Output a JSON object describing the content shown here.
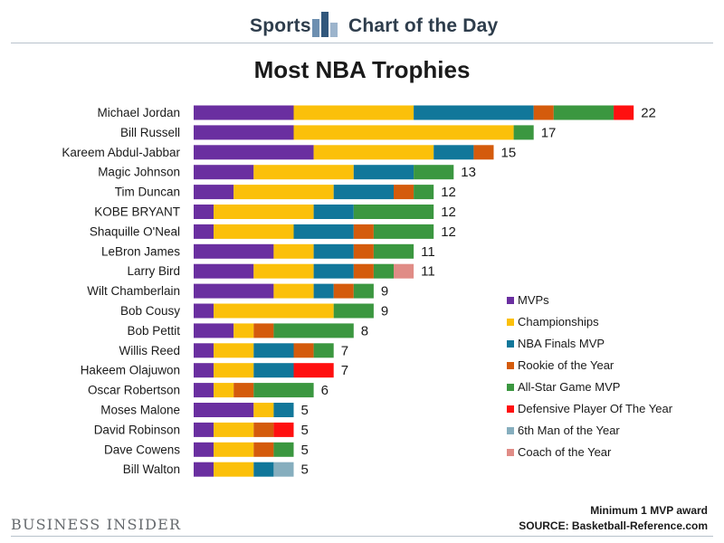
{
  "header": {
    "left": "Sports",
    "right": "Chart of the Day"
  },
  "chart_data": {
    "type": "bar",
    "orientation": "horizontal",
    "stacked": true,
    "title": "Most NBA Trophies",
    "xlabel": "",
    "ylabel": "",
    "categories": [
      "Michael Jordan",
      "Bill Russell",
      "Kareem Abdul-Jabbar",
      "Magic Johnson",
      "Tim Duncan",
      "KOBE BRYANT",
      "Shaquille O'Neal",
      "LeBron James",
      "Larry Bird",
      "Wilt Chamberlain",
      "Bob Cousy",
      "Bob Pettit",
      "Willis Reed",
      "Hakeem Olajuwon",
      "Oscar Robertson",
      "Moses Malone",
      "David Robinson",
      "Dave Cowens",
      "Bill Walton"
    ],
    "series": [
      {
        "name": "MVPs",
        "color": "#6a2fa0",
        "values": [
          5,
          5,
          6,
          3,
          2,
          1,
          1,
          4,
          3,
          4,
          1,
          2,
          1,
          1,
          1,
          3,
          1,
          1,
          1
        ]
      },
      {
        "name": "Championships",
        "color": "#fbc00a",
        "values": [
          6,
          11,
          6,
          5,
          5,
          5,
          4,
          2,
          3,
          2,
          6,
          1,
          2,
          2,
          1,
          1,
          2,
          2,
          2
        ]
      },
      {
        "name": "NBA Finals MVP",
        "color": "#11779a",
        "values": [
          6,
          0,
          2,
          3,
          3,
          2,
          3,
          2,
          2,
          1,
          0,
          0,
          2,
          2,
          0,
          1,
          0,
          0,
          1
        ]
      },
      {
        "name": "Rookie of the Year",
        "color": "#d45b0c",
        "values": [
          1,
          0,
          1,
          0,
          1,
          0,
          1,
          1,
          1,
          1,
          0,
          1,
          1,
          0,
          1,
          0,
          1,
          1,
          0
        ]
      },
      {
        "name": "All-Star Game MVP",
        "color": "#3b9740",
        "values": [
          3,
          1,
          0,
          2,
          1,
          4,
          3,
          2,
          1,
          1,
          2,
          4,
          1,
          0,
          3,
          0,
          0,
          1,
          0
        ]
      },
      {
        "name": "Defensive Player Of The Year",
        "color": "#ff1010",
        "values": [
          1,
          0,
          0,
          0,
          0,
          0,
          0,
          0,
          0,
          0,
          0,
          0,
          0,
          2,
          0,
          0,
          1,
          0,
          0
        ]
      },
      {
        "name": "6th Man of the Year",
        "color": "#86aebe",
        "values": [
          0,
          0,
          0,
          0,
          0,
          0,
          0,
          0,
          0,
          0,
          0,
          0,
          0,
          0,
          0,
          0,
          0,
          0,
          1
        ]
      },
      {
        "name": "Coach of the Year",
        "color": "#e08c86",
        "values": [
          0,
          0,
          0,
          0,
          0,
          0,
          0,
          0,
          1,
          0,
          0,
          0,
          0,
          0,
          0,
          0,
          0,
          0,
          0
        ]
      }
    ],
    "totals": [
      22,
      17,
      15,
      13,
      12,
      12,
      12,
      11,
      11,
      9,
      9,
      8,
      7,
      7,
      6,
      5,
      5,
      5,
      5
    ],
    "legend_position": "right",
    "grid": false
  },
  "footer": {
    "note": "Minimum 1 MVP award",
    "source": "SOURCE: Basketball-Reference.com",
    "brand": "BUSINESS INSIDER"
  }
}
